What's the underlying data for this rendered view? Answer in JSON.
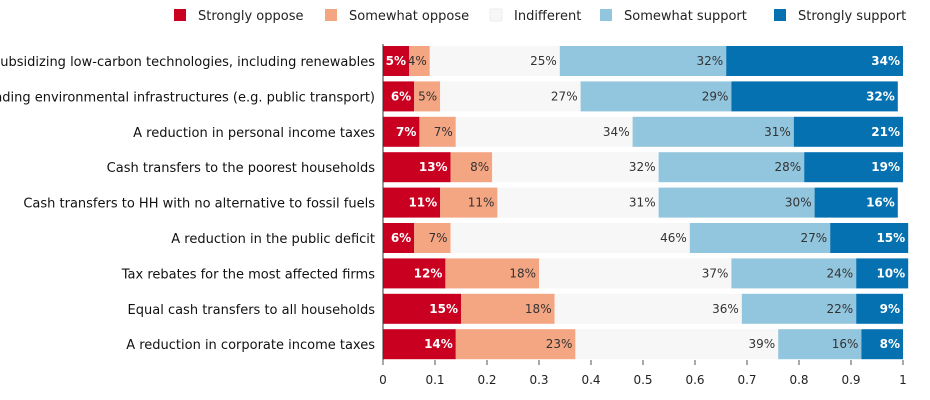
{
  "chart_data": {
    "type": "bar",
    "orientation": "horizontal",
    "stacked": true,
    "legend_position": "top",
    "grid": false,
    "xlim": [
      0,
      1
    ],
    "x_ticks": [
      "0",
      "0.1",
      "0.2",
      "0.3",
      "0.4",
      "0.5",
      "0.6",
      "0.7",
      "0.8",
      "0.9",
      "1"
    ],
    "categories": [
      "Subsidizing low-carbon technologies, including renewables",
      "Funding environmental infrastructures (e.g. public transport)",
      "A reduction in personal income taxes",
      "Cash transfers to the poorest households",
      "Cash transfers to HH with no alternative to fossil fuels",
      "A reduction in the public deficit",
      "Tax rebates for the most affected firms",
      "Equal cash transfers to all households",
      "A reduction in corporate income taxes"
    ],
    "series": [
      {
        "name": "Strongly oppose",
        "color": "#ca0020",
        "label_color": "#ffffff",
        "bold": true,
        "values": [
          0.05,
          0.06,
          0.07,
          0.13,
          0.11,
          0.06,
          0.12,
          0.15,
          0.14
        ],
        "labels": [
          "5%",
          "6%",
          "7%",
          "13%",
          "11%",
          "6%",
          "12%",
          "15%",
          "14%"
        ]
      },
      {
        "name": "Somewhat oppose",
        "color": "#f4a582",
        "label_color": "#333333",
        "bold": false,
        "values": [
          0.04,
          0.05,
          0.07,
          0.08,
          0.11,
          0.07,
          0.18,
          0.18,
          0.23
        ],
        "labels": [
          "4%",
          "5%",
          "7%",
          "8%",
          "11%",
          "7%",
          "18%",
          "18%",
          "23%"
        ]
      },
      {
        "name": "Indifferent",
        "color": "#f7f7f7",
        "label_color": "#333333",
        "bold": false,
        "values": [
          0.25,
          0.27,
          0.34,
          0.32,
          0.31,
          0.46,
          0.37,
          0.36,
          0.39
        ],
        "labels": [
          "25%",
          "27%",
          "34%",
          "32%",
          "31%",
          "46%",
          "37%",
          "36%",
          "39%"
        ]
      },
      {
        "name": "Somewhat support",
        "color": "#92c5de",
        "label_color": "#333333",
        "bold": false,
        "values": [
          0.32,
          0.29,
          0.31,
          0.28,
          0.3,
          0.27,
          0.24,
          0.22,
          0.16
        ],
        "labels": [
          "32%",
          "29%",
          "31%",
          "28%",
          "30%",
          "27%",
          "24%",
          "22%",
          "16%"
        ]
      },
      {
        "name": "Strongly support",
        "color": "#0571b0",
        "label_color": "#ffffff",
        "bold": true,
        "values": [
          0.34,
          0.32,
          0.21,
          0.19,
          0.16,
          0.15,
          0.1,
          0.09,
          0.08
        ],
        "labels": [
          "34%",
          "32%",
          "21%",
          "19%",
          "16%",
          "15%",
          "10%",
          "9%",
          "8%"
        ]
      }
    ]
  }
}
